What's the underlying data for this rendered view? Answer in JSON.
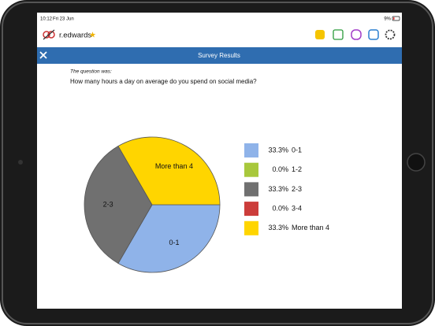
{
  "status_bar": {
    "time": "10:12",
    "date": "Fri 23 Jun",
    "battery": "9%"
  },
  "header": {
    "username": "r.edwards"
  },
  "title_bar": {
    "title": "Survey Results"
  },
  "question": {
    "intro": "The question was:",
    "text": "How many hours a day on average do you spend on social media?"
  },
  "chart_data": {
    "type": "pie",
    "categories": [
      "0-1",
      "1-2",
      "2-3",
      "3-4",
      "More than 4"
    ],
    "values": [
      33.3,
      0,
      33.3,
      0,
      33.3
    ],
    "value_labels": [
      "33.3%",
      "0.0%",
      "33.3%",
      "0.0%",
      "33.3%"
    ],
    "colors": [
      "#8fb3e9",
      "#a8c83c",
      "#707070",
      "#cc3d3b",
      "#ffd500"
    ]
  }
}
